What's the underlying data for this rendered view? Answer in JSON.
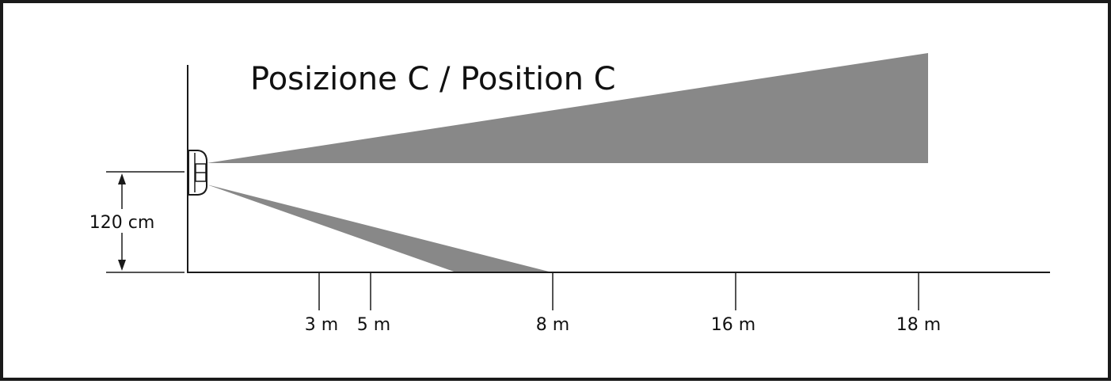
{
  "title": "Posizione C / Position C",
  "height_label": "120 cm",
  "distance_labels": [
    "3 m",
    "5 m",
    "8 m",
    "16 m",
    "18 m"
  ],
  "colors": {
    "beam": "#888888",
    "line": "#1a1a1a",
    "background": "#ffffff"
  },
  "icons": [
    "sensor-device-icon",
    "double-arrow-icon"
  ]
}
